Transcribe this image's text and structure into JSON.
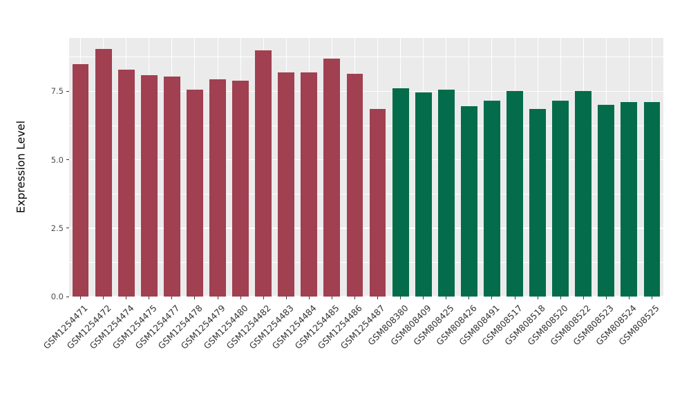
{
  "chart_data": {
    "type": "bar",
    "title": "",
    "xlabel": "",
    "ylabel": "Expression Level",
    "ylim": [
      0,
      9.45
    ],
    "yticks": [
      0,
      2.5,
      5.0,
      7.5
    ],
    "ytick_labels": [
      "0.0",
      "2.5",
      "5.0",
      "7.5"
    ],
    "minor_gridlines": [
      1.25,
      3.75,
      6.25,
      8.75
    ],
    "legend": "none",
    "grid": "on",
    "panel_background": "#EBEBEB",
    "group_colors": {
      "group1": "#A04051",
      "group2": "#046C4B"
    },
    "categories": [
      "GSM1254471",
      "GSM1254472",
      "GSM1254474",
      "GSM1254475",
      "GSM1254477",
      "GSM1254478",
      "GSM1254479",
      "GSM1254480",
      "GSM1254482",
      "GSM1254483",
      "GSM1254484",
      "GSM1254485",
      "GSM1254486",
      "GSM1254487",
      "GSM808380",
      "GSM808409",
      "GSM808425",
      "GSM808426",
      "GSM808491",
      "GSM808517",
      "GSM808518",
      "GSM808520",
      "GSM808522",
      "GSM808523",
      "GSM808524",
      "GSM808525"
    ],
    "values": [
      8.5,
      9.05,
      8.3,
      8.1,
      8.05,
      7.55,
      7.95,
      7.9,
      9.0,
      8.2,
      8.2,
      8.7,
      8.15,
      6.85,
      7.6,
      7.45,
      7.55,
      6.95,
      7.15,
      7.5,
      6.85,
      7.15,
      7.5,
      7.0,
      7.1,
      7.1
    ],
    "groups": [
      "group1",
      "group1",
      "group1",
      "group1",
      "group1",
      "group1",
      "group1",
      "group1",
      "group1",
      "group1",
      "group1",
      "group1",
      "group1",
      "group1",
      "group2",
      "group2",
      "group2",
      "group2",
      "group2",
      "group2",
      "group2",
      "group2",
      "group2",
      "group2",
      "group2",
      "group2"
    ]
  }
}
